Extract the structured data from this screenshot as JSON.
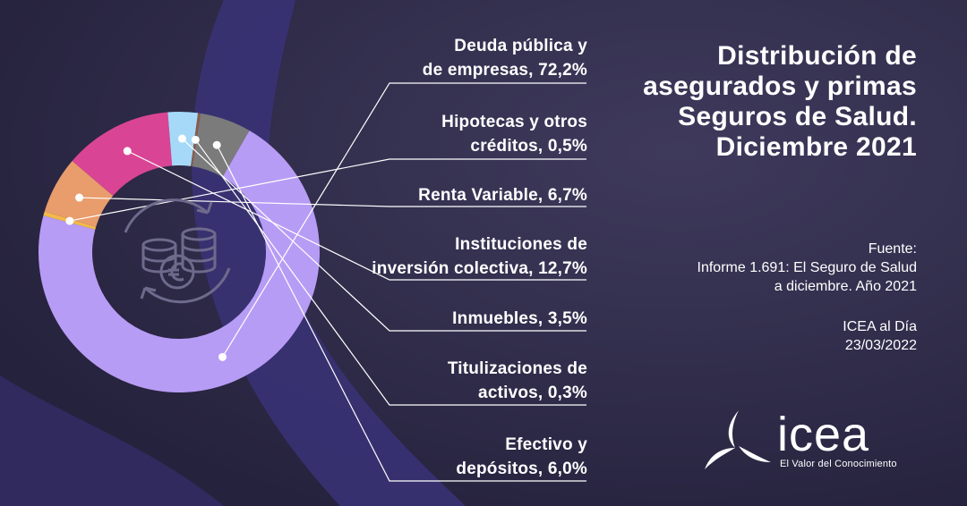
{
  "title": [
    "Distribución de",
    "asegurados y primas",
    "Seguros de Salud.",
    "Diciembre 2021"
  ],
  "source": [
    "Fuente:",
    "Informe 1.691: El Seguro de Salud",
    "a diciembre. Año 2021"
  ],
  "publication": [
    "ICEA al Día",
    "23/03/2022"
  ],
  "logo": {
    "name": "icea",
    "tagline": "El Valor del Conocimiento"
  },
  "icons": {
    "center": "coins-euro-icon"
  },
  "chart_data": {
    "type": "pie",
    "donut": true,
    "categories": [
      "Deuda pública y de empresas",
      "Hipotecas y otros créditos",
      "Renta Variable",
      "Instituciones de inversión colectiva",
      "Inmuebles",
      "Titulizaciones de activos",
      "Efectivo y depósitos"
    ],
    "values": [
      72.2,
      0.5,
      6.7,
      12.7,
      3.5,
      0.3,
      6.0
    ],
    "colors": [
      "#b79cf5",
      "#f3b94a",
      "#e99c6c",
      "#d94594",
      "#a6d9f8",
      "#8b5b45",
      "#7b7b7b"
    ],
    "label_lines": [
      [
        "Deuda pública y",
        "de empresas, 72,2%"
      ],
      [
        "Hipotecas y otros",
        "créditos, 0,5%"
      ],
      [
        "Renta Variable, 6,7%"
      ],
      [
        "Instituciones de",
        "inversión colectiva, 12,7%"
      ],
      [
        "Inmuebles, 3,5%"
      ],
      [
        "Titulizaciones de",
        "activos, 0,3%"
      ],
      [
        "Efectivo y",
        "depósitos, 6,0%"
      ]
    ]
  }
}
